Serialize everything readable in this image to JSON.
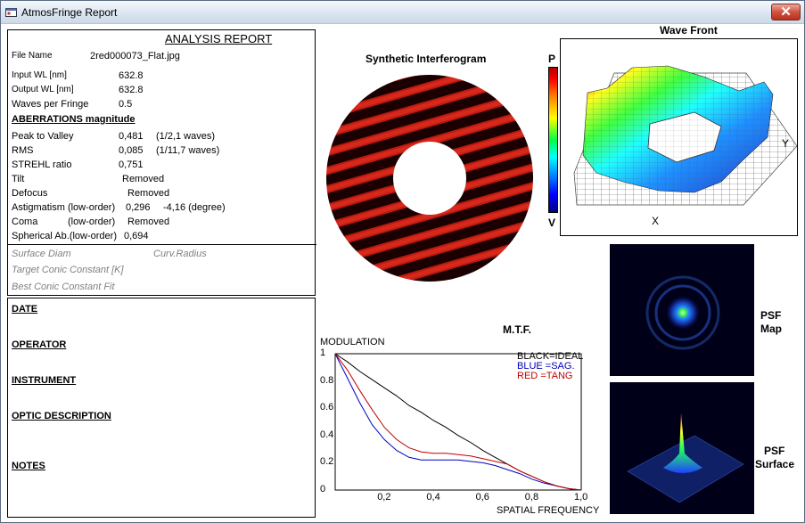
{
  "window": {
    "title": "AtmosFringe  Report",
    "close_glyph": "✕"
  },
  "report": {
    "heading": "ANALYSIS  REPORT",
    "file_name_label": "File Name",
    "file_name": "2red000073_Flat.jpg",
    "input_wl_label": "Input  WL [nm]",
    "input_wl": "632.8",
    "output_wl_label": "Output WL [nm]",
    "output_wl": "632.8",
    "waves_per_fringe_label": "Waves per Fringe",
    "waves_per_fringe": "0.5",
    "aberrations_heading": "ABERRATIONS magnitude",
    "ptv_label": "Peak to Valley",
    "ptv_value": "0,481",
    "ptv_waves": "(1/2,1 waves)",
    "rms_label": "RMS",
    "rms_value": "0,085",
    "rms_waves": "(1/11,7 waves)",
    "strehl_label": "STREHL ratio",
    "strehl_value": "0,751",
    "tilt_label": "Tilt",
    "tilt_value": "Removed",
    "defocus_label": "Defocus",
    "defocus_value": "Removed",
    "astig_label": "Astigmatism  (low-order)",
    "astig_value": "0,296",
    "astig_angle": "-4,16  (degree)",
    "coma_label": "Coma",
    "coma_order": "(low-order)",
    "coma_value": "Removed",
    "spherical_label": "Spherical Ab.(low-order)",
    "spherical_value": "0,694",
    "surface_diam_label": "Surface Diam",
    "curv_radius_label": "Curv.Radius",
    "target_conic_label": "Target Conic Constant [K]",
    "best_conic_label": "Best Conic Constant Fit"
  },
  "notes": {
    "date": "DATE",
    "operator": "OPERATOR",
    "instrument": "INSTRUMENT",
    "optic_description": "OPTIC DESCRIPTION",
    "notes": "NOTES"
  },
  "interferogram": {
    "title": "Synthetic Interferogram"
  },
  "wavefront": {
    "title": "Wave Front",
    "scale_top": "P",
    "scale_bottom": "V",
    "x_label": "X",
    "y_label": "Y"
  },
  "mtf": {
    "title": "M.T.F.",
    "ylabel": "MODULATION",
    "xlabel": "SPATIAL FREQUENCY",
    "legend": {
      "black": "BLACK=IDEAL",
      "blue": "BLUE  =SAG.",
      "red": "RED    =TANG"
    },
    "colors": {
      "ideal": "#000000",
      "sag": "#0000c0",
      "tang": "#c00000"
    }
  },
  "psf": {
    "map_label_1": "PSF",
    "map_label_2": "Map",
    "surface_label_1": "PSF",
    "surface_label_2": "Surface"
  },
  "chart_data": {
    "type": "line",
    "title": "M.T.F.",
    "xlabel": "SPATIAL FREQUENCY",
    "ylabel": "MODULATION",
    "xlim": [
      0,
      1
    ],
    "ylim": [
      0,
      1
    ],
    "x_ticks": [
      "0,2",
      "0,4",
      "0,6",
      "0,8",
      "1,0"
    ],
    "y_ticks": [
      "0",
      "0.2",
      "0.4",
      "0.6",
      "0.8",
      "1"
    ],
    "x": [
      0,
      0.05,
      0.1,
      0.15,
      0.2,
      0.25,
      0.3,
      0.35,
      0.4,
      0.45,
      0.5,
      0.55,
      0.6,
      0.65,
      0.7,
      0.75,
      0.8,
      0.85,
      0.9,
      0.95,
      1.0
    ],
    "series": [
      {
        "name": "BLACK=IDEAL",
        "color": "#000000",
        "values": [
          1.0,
          0.94,
          0.87,
          0.81,
          0.75,
          0.69,
          0.62,
          0.57,
          0.51,
          0.46,
          0.4,
          0.35,
          0.29,
          0.24,
          0.19,
          0.14,
          0.1,
          0.06,
          0.03,
          0.01,
          0.0
        ]
      },
      {
        "name": "BLUE  =SAG.",
        "color": "#0000c0",
        "values": [
          1.0,
          0.82,
          0.64,
          0.48,
          0.37,
          0.29,
          0.24,
          0.22,
          0.22,
          0.22,
          0.22,
          0.21,
          0.2,
          0.18,
          0.15,
          0.12,
          0.08,
          0.05,
          0.03,
          0.01,
          0.0
        ]
      },
      {
        "name": "RED    =TANG",
        "color": "#c00000",
        "values": [
          1.0,
          0.88,
          0.73,
          0.59,
          0.46,
          0.37,
          0.31,
          0.28,
          0.27,
          0.27,
          0.26,
          0.25,
          0.23,
          0.21,
          0.19,
          0.14,
          0.1,
          0.06,
          0.03,
          0.01,
          0.0
        ]
      }
    ]
  }
}
